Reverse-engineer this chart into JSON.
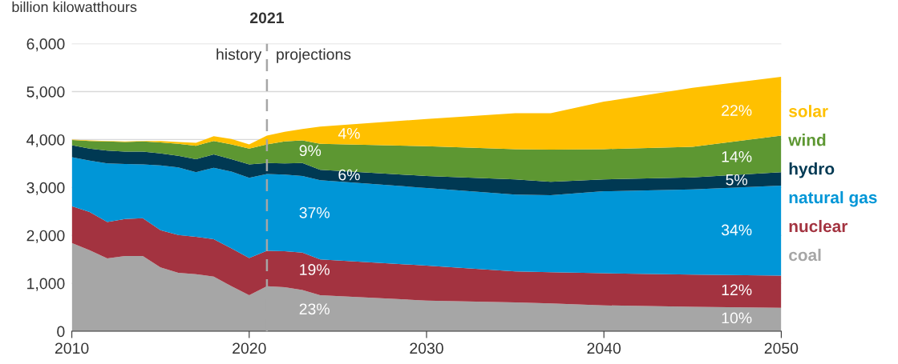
{
  "chart_data": {
    "type": "area",
    "stacked": true,
    "ylabel": "billion kilowatthours",
    "x": [
      2010,
      2011,
      2012,
      2013,
      2014,
      2015,
      2016,
      2017,
      2018,
      2019,
      2020,
      2021,
      2022,
      2023,
      2024,
      2030,
      2035,
      2037,
      2040,
      2045,
      2050
    ],
    "series": [
      {
        "name": "coal",
        "color": "#a6a6a6",
        "values": [
          1840,
          1690,
          1520,
          1570,
          1570,
          1330,
          1220,
          1190,
          1140,
          940,
          750,
          940,
          920,
          860,
          750,
          640,
          600,
          580,
          540,
          510,
          490
        ]
      },
      {
        "name": "nuclear",
        "color": "#a33340",
        "values": [
          770,
          800,
          760,
          770,
          790,
          780,
          790,
          780,
          780,
          790,
          780,
          740,
          750,
          780,
          750,
          730,
          650,
          650,
          670,
          670,
          670
        ]
      },
      {
        "name": "natural gas",
        "color": "#0096d7",
        "values": [
          1020,
          1070,
          1220,
          1150,
          1120,
          1350,
          1410,
          1350,
          1490,
          1600,
          1670,
          1600,
          1600,
          1600,
          1650,
          1620,
          1600,
          1610,
          1710,
          1780,
          1880
        ]
      },
      {
        "name": "hydro",
        "color": "#003953",
        "values": [
          250,
          250,
          270,
          260,
          270,
          250,
          240,
          270,
          280,
          260,
          280,
          230,
          230,
          270,
          220,
          250,
          320,
          280,
          250,
          250,
          280
        ]
      },
      {
        "name": "wind",
        "color": "#5d9732",
        "values": [
          110,
          160,
          190,
          200,
          210,
          230,
          250,
          280,
          280,
          310,
          330,
          390,
          460,
          470,
          540,
          620,
          630,
          670,
          630,
          640,
          760
        ]
      },
      {
        "name": "solar",
        "color": "#ffc000",
        "values": [
          10,
          10,
          10,
          10,
          10,
          30,
          40,
          60,
          100,
          110,
          90,
          180,
          200,
          240,
          360,
          570,
          750,
          760,
          990,
          1230,
          1230
        ]
      }
    ],
    "xlim": [
      2010,
      2050
    ],
    "xticks": [
      2010,
      2020,
      2030,
      2040,
      2050
    ],
    "ylim": [
      0,
      6000
    ],
    "yticks": [
      0,
      {
        "value": 1000,
        "label": "1,000"
      },
      {
        "value": 2000,
        "label": "2,000"
      },
      {
        "value": 3000,
        "label": "3,000"
      },
      {
        "value": 4000,
        "label": "4,000"
      },
      {
        "value": 5000,
        "label": "5,000"
      },
      {
        "value": 6000,
        "label": "6,000"
      }
    ],
    "grid": "y",
    "legend": "right",
    "ref_lines": [
      {
        "axis": "x",
        "value": 2021,
        "label": "2021",
        "color": "#a6a6a6",
        "line_style": "dashed"
      }
    ],
    "annotations": [
      {
        "text": "history",
        "x": 2021,
        "y": 5750
      },
      {
        "text": "projections",
        "x": 2021,
        "y": 5750
      },
      "4%",
      "9%",
      "6%",
      "37%",
      "19%",
      "23%",
      "22%",
      "14%",
      "5%",
      "34%",
      "12%",
      "10%"
    ]
  }
}
